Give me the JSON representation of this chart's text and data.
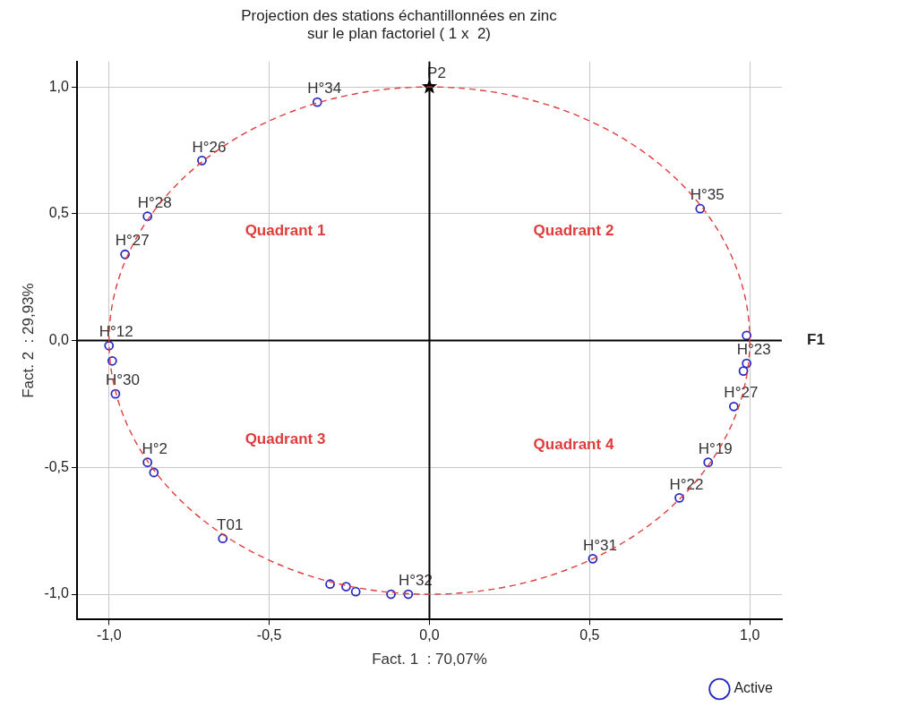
{
  "chart_data": {
    "type": "scatter",
    "title": "Projection des stations échantillonnées en zinc\nsur le plan factoriel ( 1 x  2)",
    "xlabel": "Fact. 1  : 70,07%",
    "ylabel": "Fact. 2  : 29,93%",
    "xlim": [
      -1.1,
      1.1
    ],
    "ylim": [
      -1.1,
      1.1
    ],
    "xticks": [
      {
        "value": -1,
        "label": "-1,0"
      },
      {
        "value": -0.5,
        "label": "-0,5"
      },
      {
        "value": 0,
        "label": "0,0"
      },
      {
        "value": 0.5,
        "label": "0,5"
      },
      {
        "value": 1,
        "label": "1,0"
      }
    ],
    "yticks": [
      {
        "value": -1,
        "label": "-1,0"
      },
      {
        "value": -0.5,
        "label": "-0,5"
      },
      {
        "value": 0,
        "label": "0,0"
      },
      {
        "value": 0.5,
        "label": "0,5"
      },
      {
        "value": 1,
        "label": "1,0"
      }
    ],
    "grid": true,
    "legend": "bottom right",
    "series": [
      {
        "name": "Active",
        "type": "scatter",
        "color": "#2b2bc0",
        "marker": "circle",
        "x": [
          -0.35,
          -0.71,
          -0.88,
          -0.95,
          -1.0,
          -0.99,
          -0.98,
          -0.88,
          -0.86,
          -0.645,
          -0.31,
          -0.26,
          -0.23,
          -0.12,
          -0.066,
          0.51,
          0.78,
          0.87,
          0.99,
          0.99,
          0.98,
          0.95,
          0.845
        ],
        "values": [
          0.94,
          0.71,
          0.49,
          0.34,
          -0.02,
          -0.08,
          -0.21,
          -0.48,
          -0.52,
          -0.78,
          -0.96,
          -0.97,
          -0.99,
          -1.0,
          -1.0,
          -0.86,
          -0.62,
          -0.48,
          0.02,
          -0.09,
          -0.12,
          -0.26,
          0.52
        ]
      },
      {
        "type": "scatter",
        "color": "#000000",
        "marker": "star",
        "x": [
          0
        ],
        "values": [
          1
        ]
      }
    ],
    "annotations": [
      {
        "text": "H°34",
        "x": -0.35,
        "y": 0.94
      },
      {
        "text": "H°26",
        "x": -0.71,
        "y": 0.71
      },
      {
        "text": "H°28",
        "x": -0.88,
        "y": 0.49
      },
      {
        "text": "H°27",
        "x": -0.95,
        "y": 0.34
      },
      {
        "text": "H°12",
        "x": -1.0,
        "y": -0.02
      },
      {
        "text": "H°30",
        "x": -0.98,
        "y": -0.21
      },
      {
        "text": "H°2",
        "x": -0.88,
        "y": -0.48
      },
      {
        "text": "T01",
        "x": -0.645,
        "y": -0.78
      },
      {
        "text": "H°32",
        "x": -0.066,
        "y": -1.0
      },
      {
        "text": "H°31",
        "x": 0.51,
        "y": -0.86
      },
      {
        "text": "H°22",
        "x": 0.78,
        "y": -0.62
      },
      {
        "text": "H°19",
        "x": 0.87,
        "y": -0.48
      },
      {
        "text": "H°23",
        "x": 0.99,
        "y": -0.09
      },
      {
        "text": "H°27",
        "x": 0.95,
        "y": -0.26
      },
      {
        "text": "H°35",
        "x": 0.845,
        "y": 0.52
      },
      {
        "text": "P2",
        "x": 0,
        "y": 1
      },
      "Quadrant 1",
      "Quadrant 2",
      "Quadrant 3",
      "Quadrant 4",
      "F1"
    ]
  }
}
